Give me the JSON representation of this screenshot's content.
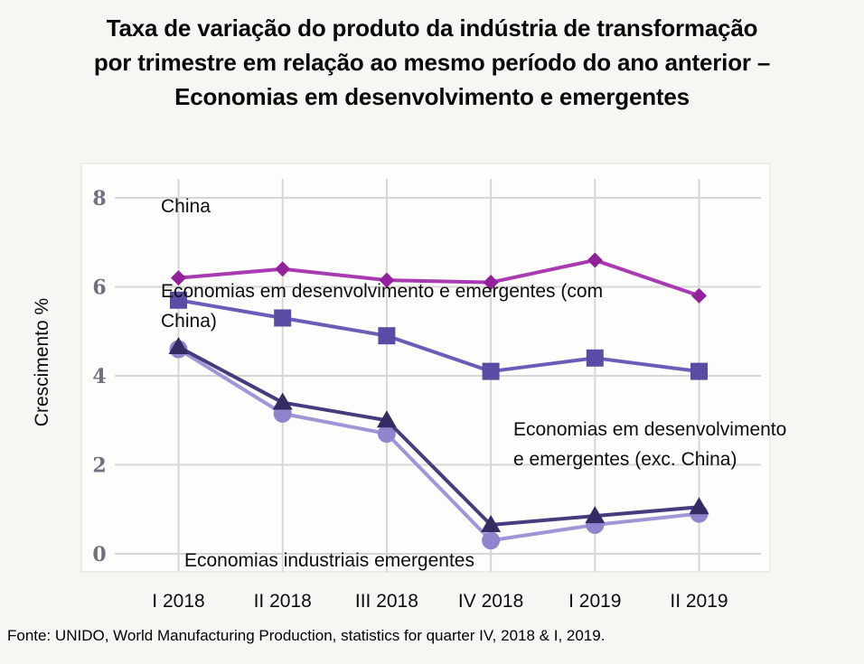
{
  "title": {
    "lines": [
      "Taxa de variação do produto da indústria de transformação",
      "por trimestre em relação ao mesmo período do ano anterior –",
      "Economias em desenvolvimento e emergentes"
    ]
  },
  "y_axis": {
    "label": "Crescimento %"
  },
  "annotations": {
    "china": {
      "lines": [
        "China"
      ]
    },
    "com_china": {
      "lines": [
        "Economias em desenvolvimento  e emergentes (com",
        "China)"
      ]
    },
    "exc_china": {
      "lines": [
        "Economias em desenvolvimento",
        "e emergentes (exc. China)"
      ]
    },
    "industrial": {
      "lines": [
        "Economias industriais emergentes"
      ]
    }
  },
  "source": "Fonte: UNIDO, World Manufacturing Production, statistics for quarter IV, 2018 & I, 2019.",
  "chart_data": {
    "type": "line",
    "title": "Taxa de variação do produto da indústria de transformação por trimestre em relação ao mesmo período do ano anterior – Economias em desenvolvimento e emergentes",
    "xlabel": "",
    "ylabel": "Crescimento %",
    "ylim": [
      0,
      8
    ],
    "y_ticks": [
      0,
      2,
      4,
      6,
      8
    ],
    "grid": true,
    "legend": "inline text annotations",
    "categories": [
      "I 2018",
      "II 2018",
      "III 2018",
      "IV 2018",
      "I 2019",
      "II 2019"
    ],
    "series": [
      {
        "name": "Economias industriais emergentes",
        "marker": "circle",
        "color": "#A195D8",
        "marker_color": "#9184CC",
        "values": [
          4.6,
          3.15,
          2.7,
          0.3,
          0.65,
          0.9
        ]
      },
      {
        "name": "Economias em desenvolvimento e emergentes (exc. China)",
        "marker": "triangle",
        "color": "#453C7D",
        "marker_color": "#332C63",
        "values": [
          4.65,
          3.4,
          3.0,
          0.65,
          0.85,
          1.05
        ]
      },
      {
        "name": "Economias em desenvolvimento e emergentes (com China)",
        "marker": "square",
        "color": "#6A5CB8",
        "marker_color": "#5A4BA4",
        "values": [
          5.7,
          5.3,
          4.9,
          4.1,
          4.4,
          4.1
        ]
      },
      {
        "name": "China",
        "marker": "diamond",
        "color": "#A83BB2",
        "marker_color": "#92219B",
        "values": [
          6.2,
          6.4,
          6.15,
          6.1,
          6.6,
          5.8
        ]
      }
    ],
    "style": {
      "grid_color": "#D6D6D6",
      "tick_text_color": "#6F7080",
      "plot_bg": "#FDFDFB"
    }
  }
}
